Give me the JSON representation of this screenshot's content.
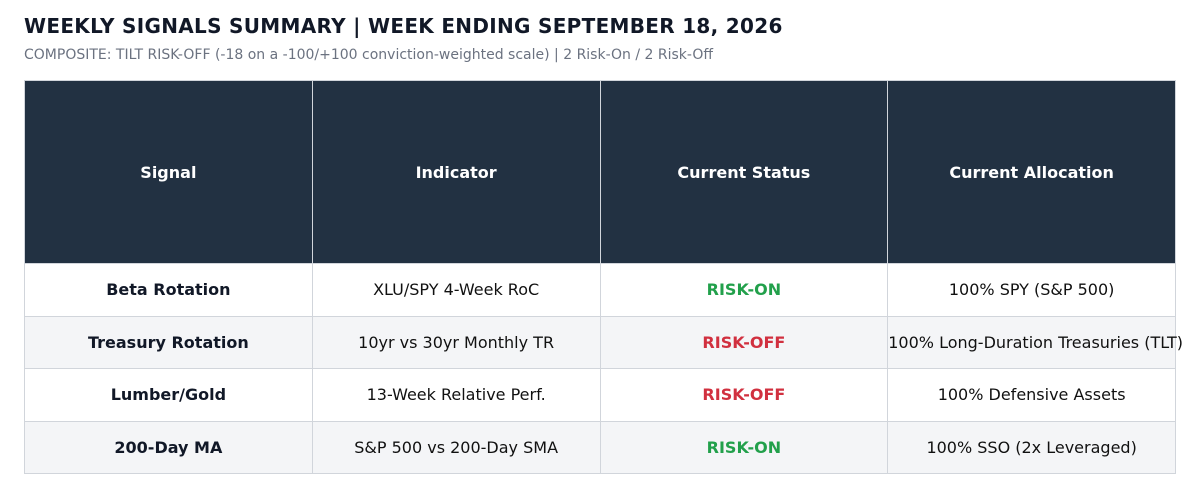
{
  "header": {
    "title": "WEEKLY SIGNALS SUMMARY | WEEK ENDING SEPTEMBER 18, 2026",
    "subtitle": "COMPOSITE: TILT RISK-OFF (-18 on a -100/+100 conviction-weighted scale) | 2 Risk-On / 2 Risk-Off"
  },
  "table": {
    "columns": [
      "Signal",
      "Indicator",
      "Current Status",
      "Current Allocation"
    ],
    "rows": [
      [
        "Beta Rotation",
        "XLU/SPY 4-Week RoC",
        "RISK-ON",
        "100% SPY (S&P 500)"
      ],
      [
        "Treasury Rotation",
        "10yr vs 30yr Monthly TR",
        "RISK-OFF",
        "100% Long-Duration Treasuries (TLT)"
      ],
      [
        "Lumber/Gold",
        "13-Week Relative Perf.",
        "RISK-OFF",
        "100% Defensive Assets"
      ],
      [
        "200-Day MA",
        "S&P 500 vs 200-Day SMA",
        "RISK-ON",
        "100% SSO (2x Leveraged)"
      ]
    ]
  }
}
